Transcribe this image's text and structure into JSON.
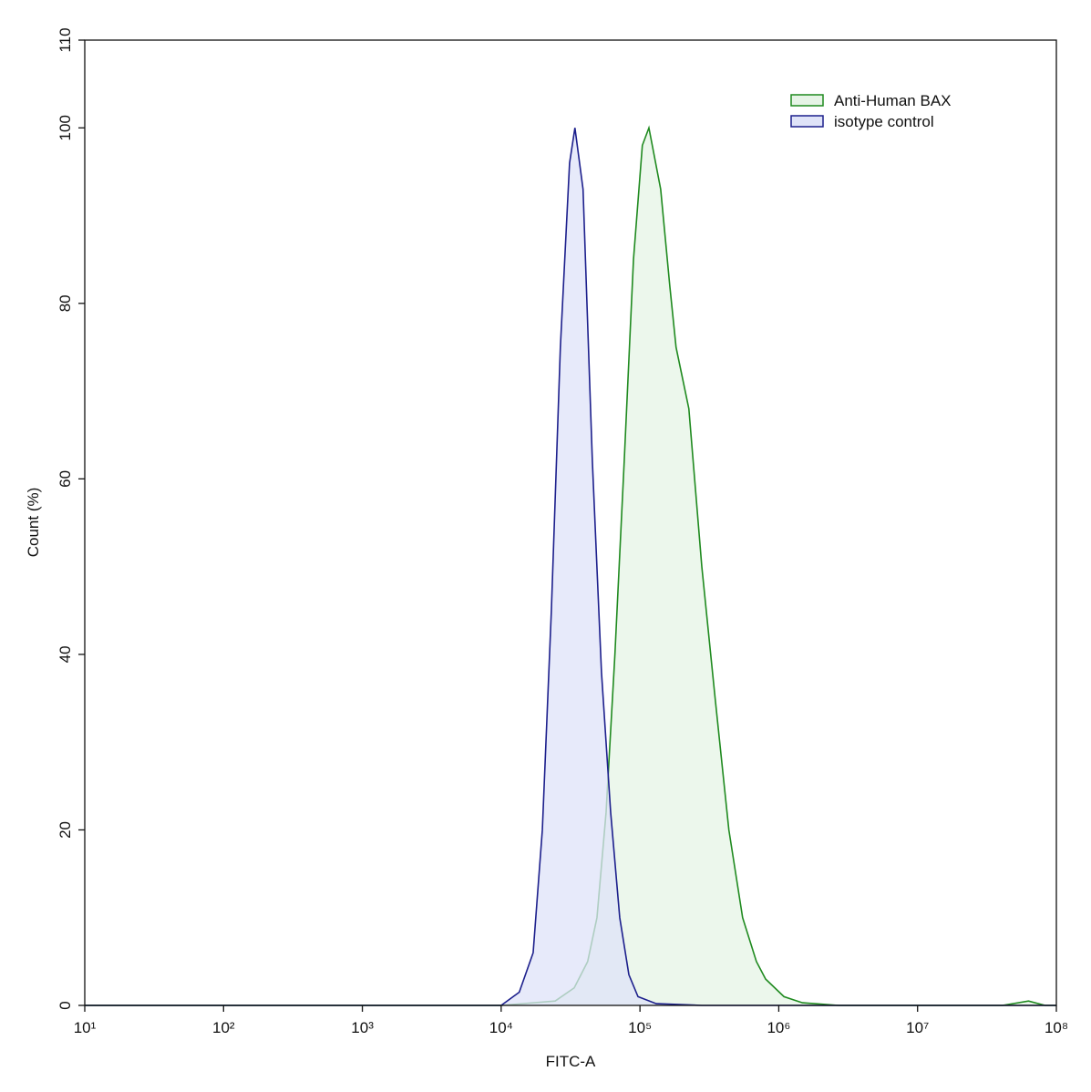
{
  "chart_data": {
    "type": "histogram-overlay",
    "xlabel": "FITC-A",
    "ylabel": "Count  (%)",
    "xscale": "log",
    "xlim": [
      10,
      100000000
    ],
    "xticks": [
      {
        "value": 10,
        "label": "10¹"
      },
      {
        "value": 100,
        "label": "10²"
      },
      {
        "value": 1000,
        "label": "10³"
      },
      {
        "value": 10000,
        "label": "10⁴"
      },
      {
        "value": 100000,
        "label": "10⁵"
      },
      {
        "value": 1000000,
        "label": "10⁶"
      },
      {
        "value": 10000000,
        "label": "10⁷"
      },
      {
        "value": 100000000,
        "label": "10⁸"
      }
    ],
    "ylim": [
      0,
      110
    ],
    "yticks": [
      0,
      20,
      40,
      60,
      80,
      100,
      110
    ],
    "legend": "top-right",
    "series": [
      {
        "name": "Anti-Human BAX",
        "color": "#1f8a1f",
        "fill": "#e6f4e6",
        "x": [
          10,
          10000,
          17000,
          24500,
          33600,
          42000,
          49000,
          57000,
          66000,
          77000,
          89800,
          104000,
          116000,
          141000,
          164000,
          182000,
          225000,
          279000,
          348000,
          437000,
          549000,
          690000,
          804000,
          1090000,
          1480000,
          2700000,
          40900000,
          63000000,
          83000000,
          100000000
        ],
        "values": [
          0,
          0,
          0.3,
          0.5,
          2,
          5,
          10,
          22,
          40,
          62,
          85,
          98,
          100,
          93,
          82,
          75,
          68,
          50,
          35,
          20,
          10,
          5,
          3,
          1,
          0.3,
          0,
          0,
          0.5,
          0,
          0
        ]
      },
      {
        "name": "isotype control",
        "color": "#1c1f8c",
        "fill": "#dfe3f8",
        "x": [
          10,
          10000,
          13500,
          17000,
          19800,
          23000,
          26700,
          31100,
          34000,
          38900,
          45400,
          52800,
          61500,
          71500,
          83200,
          96800,
          131000,
          279000,
          100000000
        ],
        "values": [
          0,
          0,
          1.5,
          6,
          20,
          45,
          75,
          96,
          100,
          93,
          62,
          38,
          22,
          10,
          3.5,
          1,
          0.2,
          0,
          0
        ]
      }
    ]
  }
}
